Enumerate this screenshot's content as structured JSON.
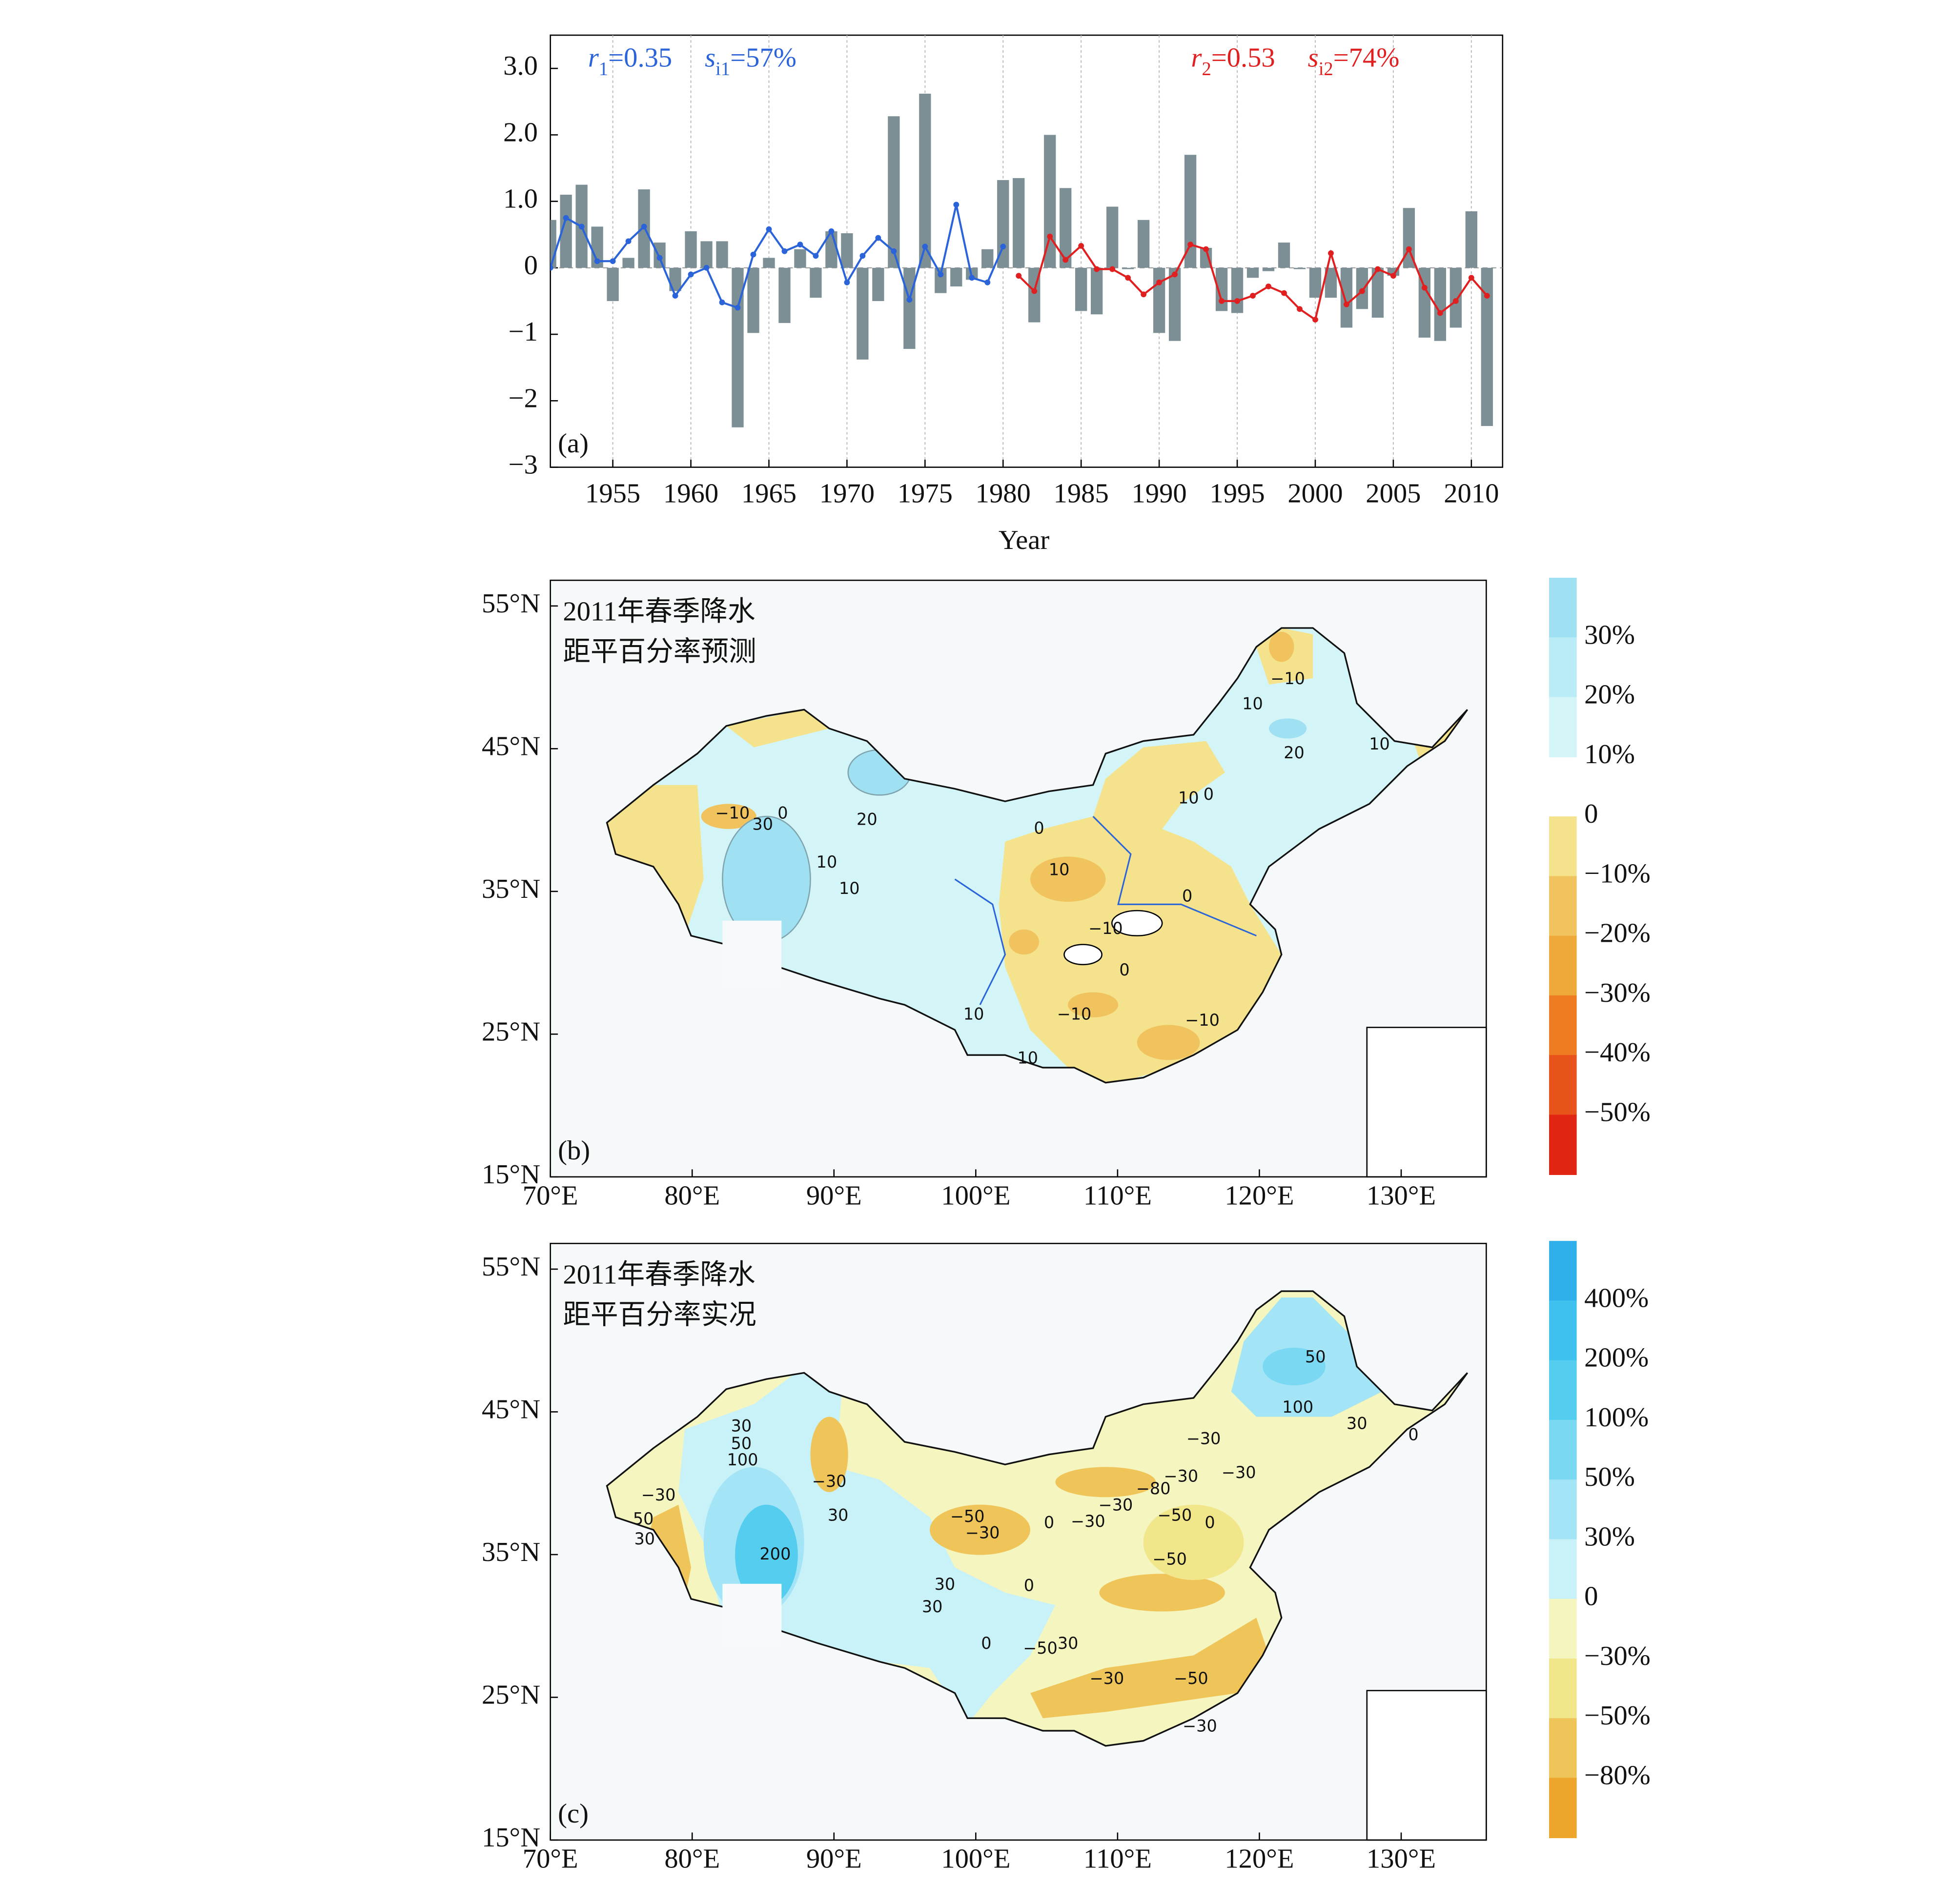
{
  "chart_data": [
    {
      "type": "bar",
      "x": [
        1951,
        1952,
        1953,
        1954,
        1955,
        1956,
        1957,
        1958,
        1959,
        1960,
        1961,
        1962,
        1963,
        1964,
        1965,
        1966,
        1967,
        1968,
        1969,
        1970,
        1971,
        1972,
        1973,
        1974,
        1975,
        1976,
        1977,
        1978,
        1979,
        1980,
        1981,
        1982,
        1983,
        1984,
        1985,
        1986,
        1987,
        1988,
        1989,
        1990,
        1991,
        1992,
        1993,
        1994,
        1995,
        1996,
        1997,
        1998,
        1999,
        2000,
        2001,
        2002,
        2003,
        2004,
        2005,
        2006,
        2007,
        2008,
        2009,
        2010,
        2011
      ],
      "series": [
        {
          "color": "#7b8f95",
          "values": [
            0.72,
            1.1,
            1.25,
            0.62,
            -0.5,
            0.15,
            1.18,
            0.38,
            -0.35,
            0.55,
            0.4,
            0.4,
            -2.4,
            -0.98,
            0.15,
            -0.83,
            0.28,
            -0.45,
            0.55,
            0.52,
            -1.38,
            -0.5,
            2.28,
            -1.22,
            2.62,
            -0.38,
            -0.28,
            -0.18,
            0.28,
            1.32,
            1.35,
            -0.82,
            2.0,
            1.2,
            -0.65,
            -0.7,
            0.92,
            -0.02,
            0.72,
            -0.98,
            -1.1,
            1.7,
            0.3,
            -0.65,
            -0.68,
            -0.15,
            -0.05,
            0.38,
            -0.02,
            -0.45,
            -0.45,
            -0.9,
            -0.62,
            -0.75,
            -0.12,
            0.9,
            -1.05,
            -1.1,
            -0.9,
            0.85,
            -2.38
          ]
        }
      ],
      "lines": [
        {
          "color": "#2b63d8",
          "values": [
            0.0,
            0.75,
            0.62,
            0.1,
            0.1,
            0.4,
            0.62,
            0.15,
            -0.42,
            -0.1,
            0.0,
            -0.52,
            -0.6,
            0.2,
            0.58,
            0.25,
            0.35,
            0.18,
            0.55,
            -0.22,
            0.18,
            0.45,
            0.25,
            -0.48,
            0.32,
            -0.1,
            0.95,
            -0.15,
            -0.22,
            0.32,
            null,
            null,
            null,
            null,
            null,
            null,
            null,
            null,
            null,
            null,
            null,
            null,
            null,
            null,
            null,
            null,
            null,
            null,
            null,
            null,
            null,
            null,
            null,
            null,
            null,
            null,
            null,
            null,
            null,
            null,
            null
          ]
        },
        {
          "color": "#e02020",
          "values": [
            null,
            null,
            null,
            null,
            null,
            null,
            null,
            null,
            null,
            null,
            null,
            null,
            null,
            null,
            null,
            null,
            null,
            null,
            null,
            null,
            null,
            null,
            null,
            null,
            null,
            null,
            null,
            null,
            null,
            null,
            -0.12,
            -0.35,
            0.47,
            0.12,
            0.33,
            -0.02,
            -0.02,
            -0.15,
            -0.4,
            -0.22,
            -0.1,
            0.35,
            0.28,
            -0.5,
            -0.5,
            -0.42,
            -0.28,
            -0.38,
            -0.62,
            -0.78,
            0.22,
            -0.55,
            -0.35,
            -0.02,
            -0.12,
            0.28,
            -0.3,
            -0.68,
            -0.5,
            -0.15,
            -0.42
          ]
        }
      ],
      "annotations": [
        {
          "color": "#2b63d8",
          "parts": [
            "r",
            "1",
            "=0.35",
            "s",
            "i1",
            "=57%"
          ]
        },
        {
          "color": "#e02020",
          "parts": [
            "r",
            "2",
            "=0.53",
            "s",
            "i2",
            "=74%"
          ]
        }
      ],
      "panel_label": "(a)",
      "x_label": "Year",
      "xlim": [
        1951,
        2012
      ],
      "xticks": [
        1955,
        1960,
        1965,
        1970,
        1975,
        1980,
        1985,
        1990,
        1995,
        2000,
        2005,
        2010
      ],
      "ylim": [
        -3,
        3.5
      ],
      "yticks": [
        {
          "value": 3,
          "label": "3.0"
        },
        {
          "value": 2,
          "label": "2.0"
        },
        {
          "value": 1,
          "label": "1.0"
        },
        0,
        {
          "value": -1,
          "label": "−1"
        },
        {
          "value": -2,
          "label": "−2"
        },
        {
          "value": -3,
          "label": "−3"
        }
      ],
      "grid": true
    },
    {
      "type": "map",
      "title": [
        "2011年春季降水",
        "距平百分率预测"
      ],
      "panel_label": "(b)",
      "xlim": [
        70,
        136
      ],
      "ylim": [
        15,
        56.8
      ],
      "xticks": [
        {
          "value": 70,
          "label": "70°E"
        },
        {
          "value": 80,
          "label": "80°E"
        },
        {
          "value": 90,
          "label": "90°E"
        },
        {
          "value": 100,
          "label": "100°E"
        },
        {
          "value": 110,
          "label": "110°E"
        },
        {
          "value": 120,
          "label": "120°E"
        },
        {
          "value": 130,
          "label": "130°E"
        }
      ],
      "yticks": [
        {
          "value": 55,
          "label": "55°N"
        },
        {
          "value": 45,
          "label": "45°N"
        },
        {
          "value": 35,
          "label": "35°N"
        },
        {
          "value": 25,
          "label": "25°N"
        },
        {
          "value": 15,
          "label": "15°N"
        }
      ],
      "colorbar": {
        "colors": [
          "#9fe0f3",
          "#b9ecf6",
          "#d4f5f8",
          null,
          "#f4e38c",
          "#f1c35e",
          "#efa93a",
          "#ee7c22",
          "#e8531b",
          "#e02613"
        ],
        "labels": [
          "30%",
          "20%",
          "10%",
          "0",
          "−10%",
          "−20%",
          "−30%",
          "−40%",
          "−50%"
        ]
      },
      "contour_labels": [
        "−10",
        "10",
        "20",
        "10",
        "10",
        "0",
        "−10",
        "30",
        "0",
        "20",
        "10",
        "10",
        "0",
        "10",
        "0",
        "−10",
        "0",
        "10",
        "−10",
        "−10",
        "10"
      ]
    },
    {
      "type": "map",
      "title": [
        "2011年春季降水",
        "距平百分率实况"
      ],
      "panel_label": "(c)",
      "xlim": [
        70,
        136
      ],
      "ylim": [
        15,
        56.8
      ],
      "xticks": [
        {
          "value": 70,
          "label": "70°E"
        },
        {
          "value": 80,
          "label": "80°E"
        },
        {
          "value": 90,
          "label": "90°E"
        },
        {
          "value": 100,
          "label": "100°E"
        },
        {
          "value": 110,
          "label": "110°E"
        },
        {
          "value": 120,
          "label": "120°E"
        },
        {
          "value": 130,
          "label": "130°E"
        }
      ],
      "yticks": [
        {
          "value": 55,
          "label": "55°N"
        },
        {
          "value": 45,
          "label": "45°N"
        },
        {
          "value": 35,
          "label": "35°N"
        },
        {
          "value": 25,
          "label": "25°N"
        },
        {
          "value": 15,
          "label": "15°N"
        }
      ],
      "colorbar": {
        "colors": [
          "#2fb0ea",
          "#3ec1ee",
          "#55cdef",
          "#7ad8f2",
          "#a3e5f6",
          "#c8f2f8",
          "#f5f5c0",
          "#f1e68a",
          "#efc55a",
          "#eea52b"
        ],
        "labels": [
          "400%",
          "200%",
          "100%",
          "50%",
          "30%",
          "0",
          "−30%",
          "−50%",
          "−80%"
        ]
      },
      "contour_labels": [
        "50",
        "100",
        "30",
        "0",
        "−30",
        "−30",
        "−30",
        "−80",
        "−50",
        "0",
        "−30",
        "−30",
        "0",
        "−50",
        "−30",
        "30",
        "50",
        "100",
        "−30",
        "−30",
        "50",
        "30",
        "30",
        "200",
        "−50",
        "30",
        "0",
        "30",
        "0",
        "30",
        "−50",
        "−30",
        "−50",
        "−30"
      ]
    }
  ]
}
